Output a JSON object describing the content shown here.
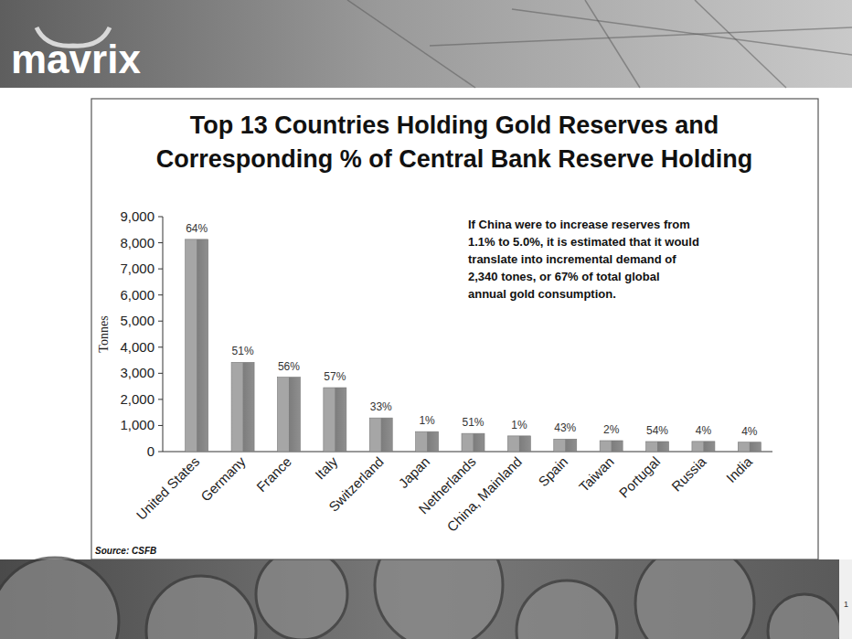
{
  "header": {
    "logo": "mavrix"
  },
  "chart_data": {
    "type": "bar",
    "title": "Top 13 Countries Holding Gold Reserves and Corresponding % of Central Bank Reserve Holding",
    "y_label": "Tonnes",
    "categories": [
      "United States",
      "Germany",
      "France",
      "Italy",
      "Switzerland",
      "Japan",
      "Netherlands",
      "China, Mainland",
      "Spain",
      "Taiwan",
      "Portugal",
      "Russia",
      "India"
    ],
    "values": [
      8130,
      3420,
      2850,
      2450,
      1290,
      765,
      695,
      600,
      480,
      420,
      385,
      390,
      360
    ],
    "share_labels": [
      "64%",
      "51%",
      "56%",
      "57%",
      "33%",
      "1%",
      "51%",
      "1%",
      "43%",
      "2%",
      "54%",
      "4%",
      "4%"
    ],
    "color": "#a6a6a6",
    "ylim": [
      0,
      9000
    ],
    "yticks": [
      0,
      {
        "value": 1000,
        "label": "1,000"
      },
      {
        "value": 2000,
        "label": "2,000"
      },
      {
        "value": 3000,
        "label": "3,000"
      },
      {
        "value": 4000,
        "label": "4,000"
      },
      {
        "value": 5000,
        "label": "5,000"
      },
      {
        "value": 6000,
        "label": "6,000"
      },
      {
        "value": 7000,
        "label": "7,000"
      },
      {
        "value": 8000,
        "label": "8,000"
      },
      {
        "value": 9000,
        "label": "9,000"
      }
    ],
    "grid": false,
    "annotation": [
      "If China were to increase reserves from",
      "1.1% to 5.0%, it is estimated that it would",
      "translate into incremental demand of",
      "2,340 tones, or 67% of total global",
      "annual gold consumption."
    ],
    "source": "Source: CSFB"
  },
  "footer": {
    "page_number": "1"
  }
}
